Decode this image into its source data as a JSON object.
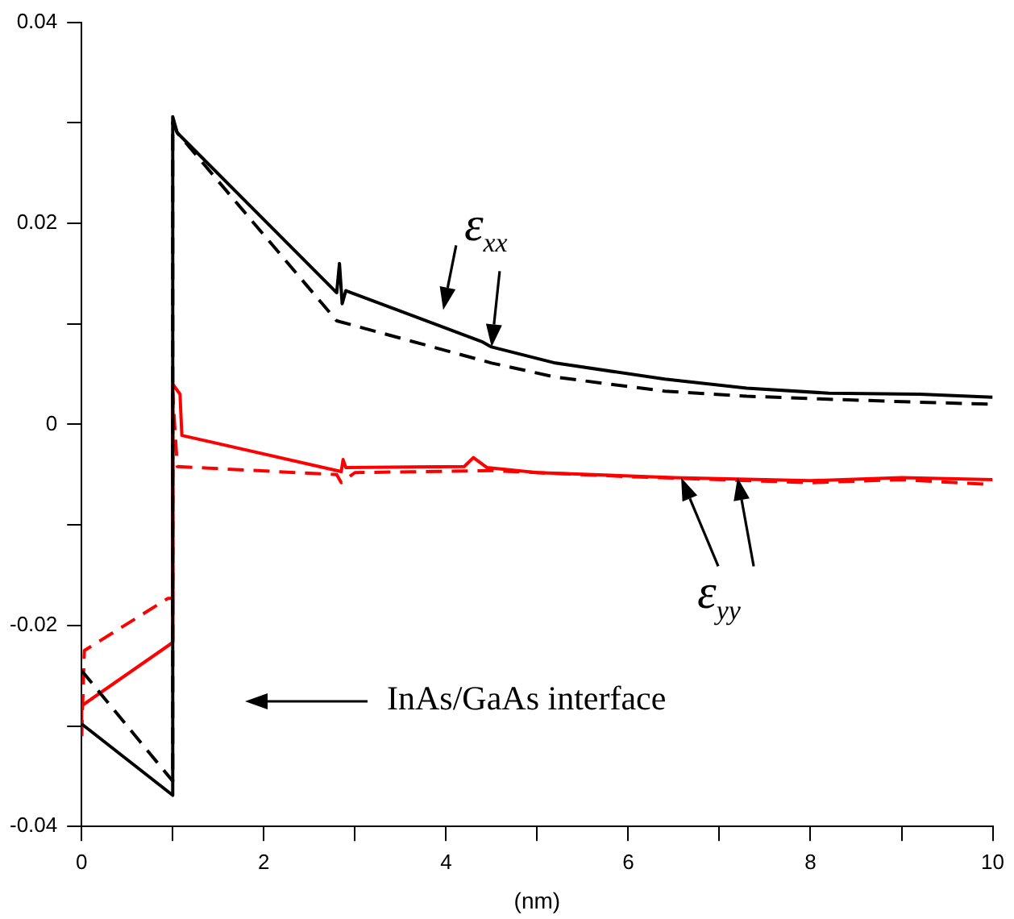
{
  "chart_data": {
    "type": "line",
    "xlabel": "(nm)",
    "xlim": [
      0,
      10
    ],
    "xticks": [
      0,
      {
        "value": 1,
        "label": null
      },
      2,
      {
        "value": 3,
        "label": null
      },
      4,
      {
        "value": 5,
        "label": null
      },
      6,
      {
        "value": 7,
        "label": null
      },
      8,
      {
        "value": 9,
        "label": null
      },
      10
    ],
    "ylim": [
      -0.04,
      0.04
    ],
    "yticks": [
      -0.04,
      {
        "value": -0.03,
        "label": null
      },
      -0.02,
      {
        "value": -0.01,
        "label": null
      },
      0,
      {
        "value": 0.01,
        "label": null
      },
      0.02,
      {
        "value": 0.03,
        "label": null
      },
      0.04
    ],
    "grid": false,
    "legend": false,
    "marker": "none",
    "series": [
      {
        "color": "#000000",
        "line_style": "solid",
        "x": [
          0,
          1,
          1,
          1.05,
          2.8,
          2.83,
          2.86,
          2.9,
          4.4,
          4.5,
          5.2,
          6.4,
          7.3,
          8.2,
          9.2,
          10
        ],
        "values": [
          -0.0298,
          -0.0369,
          0.0306,
          0.029,
          0.0131,
          0.016,
          0.012,
          0.0133,
          0.0082,
          0.0077,
          0.0061,
          0.0045,
          0.0036,
          0.0031,
          0.003,
          0.0027
        ]
      },
      {
        "color": "#000000",
        "line_style": "dashed",
        "x": [
          0,
          1,
          1,
          1.05,
          2.8,
          4.5,
          5.2,
          6.4,
          7.3,
          8.2,
          9.2,
          10
        ],
        "values": [
          -0.0245,
          -0.0355,
          0.03,
          0.029,
          0.0103,
          0.0061,
          0.0047,
          0.0033,
          0.0028,
          0.0025,
          0.0022,
          0.002
        ]
      },
      {
        "color": "#ff0000",
        "line_style": "solid",
        "x": [
          0,
          0,
          1,
          1,
          1.08,
          1.1,
          2.85,
          2.87,
          2.9,
          4.2,
          4.3,
          4.45,
          5,
          6.5,
          8,
          9,
          10
        ],
        "values": [
          -0.031,
          -0.028,
          -0.0217,
          0.004,
          0.003,
          -0.0011,
          -0.0047,
          -0.0035,
          -0.0043,
          -0.0042,
          -0.0033,
          -0.0043,
          -0.0048,
          -0.0053,
          -0.0056,
          -0.0053,
          -0.0055
        ]
      },
      {
        "color": "#ff0000",
        "line_style": "dashed",
        "x": [
          0,
          0.03,
          0.95,
          1,
          1,
          1.05,
          2.8,
          2.85,
          3,
          4.5,
          6,
          8,
          9,
          10
        ],
        "values": [
          -0.031,
          -0.0225,
          -0.0173,
          -0.0173,
          0.003,
          -0.0042,
          -0.005,
          -0.0058,
          -0.0048,
          -0.0046,
          -0.0052,
          -0.0058,
          -0.0055,
          -0.006
        ]
      }
    ],
    "annotations": [
      {
        "text": "ε$_{xx}$",
        "x": 4.5,
        "y": 0.0077
      },
      {
        "text": "ε$_{yy}$",
        "x": 7.2,
        "y": -0.0053
      },
      "InAs/GaAs interface"
    ]
  }
}
